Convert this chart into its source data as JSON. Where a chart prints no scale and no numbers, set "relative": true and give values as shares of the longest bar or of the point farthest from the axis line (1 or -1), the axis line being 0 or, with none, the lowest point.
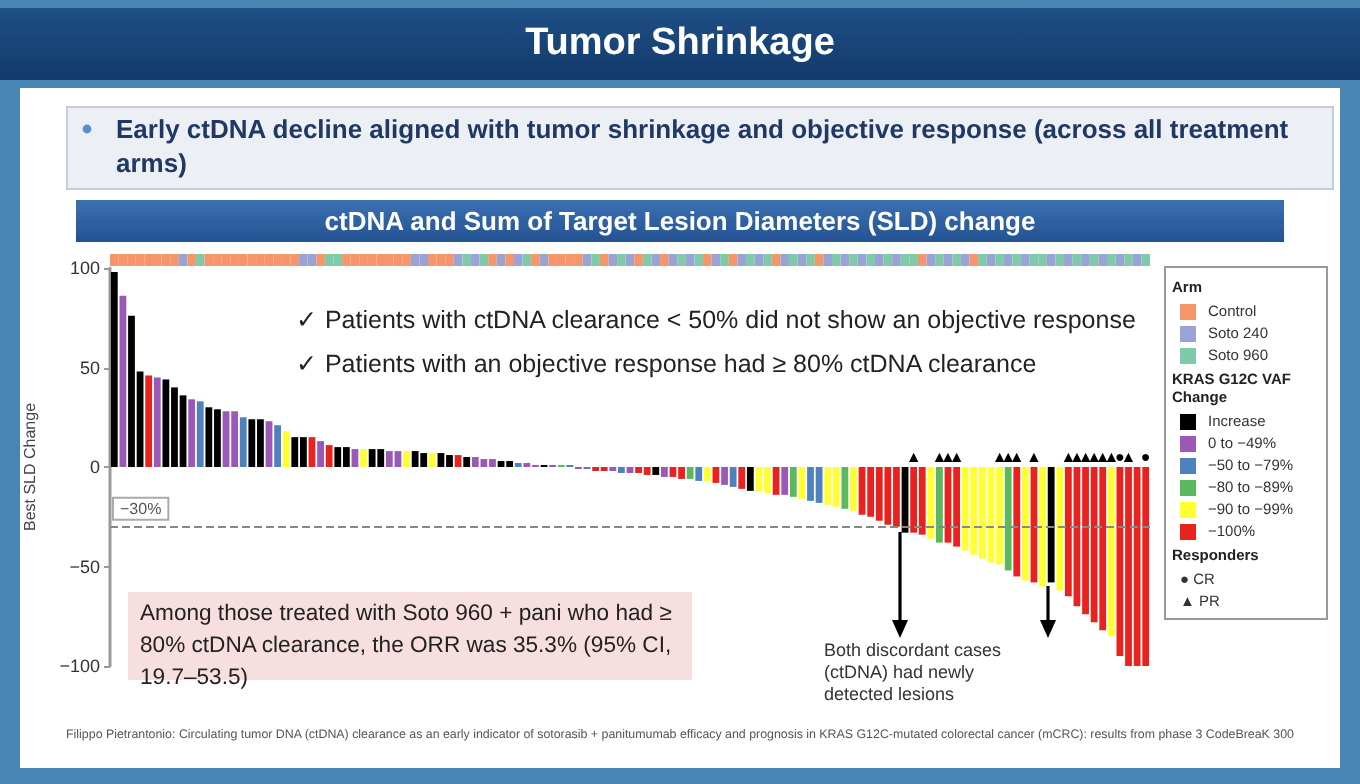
{
  "chart_data": [
    {
      "type": "bar",
      "ylabel": "Best SLD Change",
      "legend_title": "KRAS G12C VAF Change",
      "tick_labels": "y",
      "ylim": [
        -100,
        100
      ],
      "yticks": [
        {
          "value": -100,
          "label": "−100"
        },
        {
          "value": -50,
          "label": "−50"
        },
        0,
        50,
        100
      ],
      "ref_lines": [
        {
          "axis": "y",
          "value": -30,
          "label": "−30%",
          "color": "#888888",
          "line_style": "dashed"
        }
      ],
      "annotations": [
        "ctDNA and Sum of Target Lesion Diameters (SLD) change",
        "✓ Patients with ctDNA clearance < 50% did not show an objective response",
        "✓ Patients with an objective response had ≥ 80% ctDNA clearance",
        "Among those treated with Soto 960 + pani who had ≥ 80% ctDNA clearance, the ORR was 35.3% (95% CI, 19.7–53.5)",
        "Both discordant cases (ctDNA) had newly detected lesions",
        "Responders",
        "● CR",
        "▲ PR",
        "Filippo Pietrantonio: Circulating tumor DNA (ctDNA) clearance as an early indicator of sotorasib + panitumumab efficacy and prognosis in KRAS G12C-mutated colorectal cancer (mCRC): results from phase 3 CodeBreaK 300",
        "Increase",
        "0 to −49%",
        "−50 to −79%",
        "−80 to −89%",
        "−90 to −99%",
        "−100%"
      ],
      "categories": [
        null,
        null,
        null,
        null,
        null,
        null,
        null,
        null,
        null,
        null,
        null,
        null,
        null,
        null,
        null,
        null,
        null,
        null,
        null,
        null,
        null,
        null,
        null,
        null,
        null,
        null,
        null,
        null,
        null,
        null,
        null,
        null,
        null,
        null,
        null,
        null,
        null,
        null,
        null,
        null,
        null,
        null,
        null,
        null,
        null,
        null,
        null,
        null,
        null,
        null,
        null,
        null,
        null,
        null,
        null,
        null,
        null,
        null,
        null,
        null,
        null,
        null,
        null,
        null,
        null,
        null,
        null,
        null,
        null,
        null,
        null,
        null,
        null,
        null,
        null,
        null,
        null,
        null,
        null,
        null,
        null,
        null,
        null,
        null,
        null,
        null,
        null,
        null,
        null,
        null,
        null,
        null,
        null,
        null,
        null,
        null,
        null,
        null,
        null,
        null,
        null,
        null,
        null,
        null,
        null,
        null,
        null,
        null,
        null,
        null,
        null,
        null,
        null,
        null,
        null,
        null,
        null,
        null,
        null,
        null,
        null
      ],
      "values": [
        98,
        86,
        76,
        48,
        46,
        45,
        44,
        40,
        36,
        34,
        33,
        30,
        29,
        28,
        28,
        25,
        24,
        24,
        23,
        21,
        18,
        15,
        15,
        15,
        13,
        11,
        10,
        10,
        9,
        9,
        9,
        9,
        8,
        8,
        8,
        8,
        7,
        7,
        7,
        6,
        6,
        5,
        5,
        4,
        4,
        3,
        3,
        2,
        2,
        1,
        1,
        1,
        1,
        1,
        -1,
        -1,
        -2,
        -2,
        -2,
        -3,
        -3,
        -3,
        -4,
        -4,
        -5,
        -5,
        -6,
        -6,
        -7,
        -7,
        -8,
        -9,
        -10,
        -11,
        -12,
        -12,
        -13,
        -14,
        -14,
        -15,
        -16,
        -17,
        -18,
        -19,
        -20,
        -21,
        -22,
        -24,
        -25,
        -27,
        -29,
        -30,
        -33,
        -33,
        -34,
        -36,
        -38,
        -38,
        -40,
        -42,
        -44,
        -46,
        -48,
        -49,
        -52,
        -55,
        -57,
        -58,
        -60,
        -58,
        -62,
        -65,
        -70,
        -74,
        -78,
        -82,
        -85,
        -95,
        -100,
        -100,
        -100
      ],
      "colors": [
        "#000000",
        "#9b59b6",
        "#000000",
        "#000000",
        "#e8231f",
        "#9b59b6",
        "#000000",
        "#000000",
        "#000000",
        "#9b59b6",
        "#4f81bd",
        "#000000",
        "#000000",
        "#9b59b6",
        "#9b59b6",
        "#4f81bd",
        "#000000",
        "#000000",
        "#9b59b6",
        "#4f81bd",
        "#ffff33",
        "#000000",
        "#000000",
        "#e8231f",
        "#9b59b6",
        "#e8231f",
        "#000000",
        "#000000",
        "#9b59b6",
        "#ffff33",
        "#000000",
        "#000000",
        "#9b59b6",
        "#9b59b6",
        "#ffff33",
        "#000000",
        "#000000",
        "#ffff33",
        "#000000",
        "#000000",
        "#e8231f",
        "#000000",
        "#9b59b6",
        "#9b59b6",
        "#9b59b6",
        "#000000",
        "#000000",
        "#4f81bd",
        "#9b59b6",
        "#9b59b6",
        "#000000",
        "#9b59b6",
        "#5cb85c",
        "#4f81bd",
        "#9b59b6",
        "#4f81bd",
        "#e8231f",
        "#e8231f",
        "#9b59b6",
        "#4f81bd",
        "#9b59b6",
        "#e8231f",
        "#e8231f",
        "#000000",
        "#9b59b6",
        "#e8231f",
        "#e8231f",
        "#5cb85c",
        "#4f81bd",
        "#ffff33",
        "#e8231f",
        "#9b59b6",
        "#4f81bd",
        "#e8231f",
        "#000000",
        "#ffff33",
        "#ffff33",
        "#e8231f",
        "#9b59b6",
        "#5cb85c",
        "#ffff33",
        "#4f81bd",
        "#4f81bd",
        "#ffff33",
        "#ffff33",
        "#5cb85c",
        "#ffff33",
        "#e8231f",
        "#e8231f",
        "#e8231f",
        "#e8231f",
        "#e8231f",
        "#000000",
        "#e8231f",
        "#e8231f",
        "#ffff33",
        "#5cb85c",
        "#e8231f",
        "#e8231f",
        "#ffff33",
        "#ffff33",
        "#ffff33",
        "#ffff33",
        "#ffff33",
        "#5cb85c",
        "#e8231f",
        "#ffff33",
        "#e8231f",
        "#ffff33",
        "#000000",
        "#ffff33",
        "#e8231f",
        "#e8231f",
        "#e8231f",
        "#e8231f",
        "#e8231f",
        "#ffff33",
        "#e8231f",
        "#e8231f",
        "#e8231f",
        "#e8231f"
      ],
      "value_labels": [
        null,
        null,
        null,
        null,
        null,
        null,
        null,
        null,
        null,
        null,
        null,
        null,
        null,
        null,
        null,
        null,
        null,
        null,
        null,
        null,
        null,
        null,
        null,
        null,
        null,
        null,
        null,
        null,
        null,
        null,
        null,
        null,
        null,
        null,
        null,
        null,
        null,
        null,
        null,
        null,
        null,
        null,
        null,
        null,
        null,
        null,
        null,
        null,
        null,
        null,
        null,
        null,
        null,
        null,
        null,
        null,
        null,
        null,
        null,
        null,
        null,
        null,
        null,
        null,
        null,
        null,
        null,
        null,
        null,
        null,
        null,
        null,
        null,
        null,
        null,
        null,
        null,
        null,
        null,
        null,
        null,
        null,
        null,
        null,
        null,
        null,
        null,
        null,
        null,
        null,
        null,
        null,
        null,
        "▲",
        null,
        null,
        "▲",
        "▲",
        "▲",
        null,
        null,
        null,
        null,
        "▲",
        "▲",
        "▲",
        null,
        "▲",
        null,
        null,
        null,
        "▲",
        "▲",
        "▲",
        "▲",
        "▲",
        "▲",
        "●",
        "▲",
        null,
        "●"
      ]
    },
    {
      "type": "bar",
      "title": "Tumor Shrinkage",
      "subtitle": "Early ctDNA decline aligned with tumor shrinkage and objective response (across all treatment arms)",
      "relative": true,
      "legend_title": "Arm",
      "tick_labels": false,
      "annotations": [
        "Control",
        "Soto 240",
        "Soto 960"
      ],
      "categories": [
        null,
        null,
        null,
        null,
        null,
        null,
        null,
        null,
        null,
        null,
        null,
        null,
        null,
        null,
        null,
        null,
        null,
        null,
        null,
        null,
        null,
        null,
        null,
        null,
        null,
        null,
        null,
        null,
        null,
        null,
        null,
        null,
        null,
        null,
        null,
        null,
        null,
        null,
        null,
        null,
        null,
        null,
        null,
        null,
        null,
        null,
        null,
        null,
        null,
        null,
        null,
        null,
        null,
        null,
        null,
        null,
        null,
        null,
        null,
        null,
        null,
        null,
        null,
        null,
        null,
        null,
        null,
        null,
        null,
        null,
        null,
        null,
        null,
        null,
        null,
        null,
        null,
        null,
        null,
        null,
        null,
        null,
        null,
        null,
        null,
        null,
        null,
        null,
        null,
        null,
        null,
        null,
        null,
        null,
        null,
        null,
        null,
        null,
        null,
        null,
        null,
        null,
        null,
        null,
        null,
        null,
        null,
        null,
        null,
        null,
        null,
        null,
        null,
        null,
        null,
        null,
        null,
        null,
        null,
        null,
        null
      ],
      "values": [
        1,
        1,
        1,
        1,
        1,
        1,
        1,
        1,
        1,
        1,
        1,
        1,
        1,
        1,
        1,
        1,
        1,
        1,
        1,
        1,
        1,
        1,
        1,
        1,
        1,
        1,
        1,
        1,
        1,
        1,
        1,
        1,
        1,
        1,
        1,
        1,
        1,
        1,
        1,
        1,
        1,
        1,
        1,
        1,
        1,
        1,
        1,
        1,
        1,
        1,
        1,
        1,
        1,
        1,
        1,
        1,
        1,
        1,
        1,
        1,
        1,
        1,
        1,
        1,
        1,
        1,
        1,
        1,
        1,
        1,
        1,
        1,
        1,
        1,
        1,
        1,
        1,
        1,
        1,
        1,
        1,
        1,
        1,
        1,
        1,
        1,
        1,
        1,
        1,
        1,
        1,
        1,
        1,
        1,
        1,
        1,
        1,
        1,
        1,
        1,
        1,
        1,
        1,
        1,
        1,
        1,
        1,
        1,
        1,
        1,
        1,
        1,
        1,
        1,
        1,
        1,
        1,
        1,
        1,
        1,
        1
      ],
      "colors": [
        "#f4956a",
        "#f4956a",
        "#f4956a",
        "#f4956a",
        "#f4956a",
        "#f4956a",
        "#f4956a",
        "#f4956a",
        "#9aa3d6",
        "#f4956a",
        "#7fcaa8",
        "#f4956a",
        "#f4956a",
        "#f4956a",
        "#f4956a",
        "#f4956a",
        "#f4956a",
        "#f4956a",
        "#f4956a",
        "#f4956a",
        "#f4956a",
        "#f4956a",
        "#9aa3d6",
        "#9aa3d6",
        "#f4956a",
        "#7fcaa8",
        "#7fcaa8",
        "#f4956a",
        "#f4956a",
        "#f4956a",
        "#f4956a",
        "#f4956a",
        "#f4956a",
        "#f4956a",
        "#f4956a",
        "#9aa3d6",
        "#9aa3d6",
        "#f4956a",
        "#f4956a",
        "#f4956a",
        "#9aa3d6",
        "#7fcaa8",
        "#9aa3d6",
        "#7fcaa8",
        "#f4956a",
        "#9aa3d6",
        "#f4956a",
        "#9aa3d6",
        "#7fcaa8",
        "#f4956a",
        "#9aa3d6",
        "#f4956a",
        "#f4956a",
        "#f4956a",
        "#f4956a",
        "#9aa3d6",
        "#7fcaa8",
        "#f4956a",
        "#9aa3d6",
        "#7fcaa8",
        "#9aa3d6",
        "#f4956a",
        "#7fcaa8",
        "#9aa3d6",
        "#f4956a",
        "#9aa3d6",
        "#7fcaa8",
        "#9aa3d6",
        "#7fcaa8",
        "#f4956a",
        "#9aa3d6",
        "#7fcaa8",
        "#f4956a",
        "#9aa3d6",
        "#7fcaa8",
        "#9aa3d6",
        "#7fcaa8",
        "#f4956a",
        "#9aa3d6",
        "#7fcaa8",
        "#9aa3d6",
        "#7fcaa8",
        "#f4956a",
        "#9aa3d6",
        "#7fcaa8",
        "#9aa3d6",
        "#7fcaa8",
        "#9aa3d6",
        "#7fcaa8",
        "#9aa3d6",
        "#7fcaa8",
        "#9aa3d6",
        "#7fcaa8",
        "#7fcaa8",
        "#f4956a",
        "#9aa3d6",
        "#7fcaa8",
        "#9aa3d6",
        "#7fcaa8",
        "#9aa3d6",
        "#f4956a",
        "#7fcaa8",
        "#9aa3d6",
        "#7fcaa8",
        "#9aa3d6",
        "#7fcaa8",
        "#9aa3d6",
        "#7fcaa8",
        "#7fcaa8",
        "#9aa3d6",
        "#7fcaa8",
        "#9aa3d6",
        "#7fcaa8",
        "#9aa3d6",
        "#7fcaa8",
        "#9aa3d6",
        "#7fcaa8",
        "#9aa3d6",
        "#7fcaa8",
        "#9aa3d6",
        "#7fcaa8"
      ]
    }
  ]
}
